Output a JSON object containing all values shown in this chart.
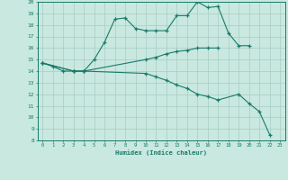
{
  "xlabel": "Humidex (Indice chaleur)",
  "bg_color": "#c8e8e0",
  "line_color": "#1a7a6a",
  "grid_color": "#a8ccc4",
  "xlim": [
    -0.5,
    23.5
  ],
  "ylim": [
    8,
    20
  ],
  "xticks": [
    0,
    1,
    2,
    3,
    4,
    5,
    6,
    7,
    8,
    9,
    10,
    11,
    12,
    13,
    14,
    15,
    16,
    17,
    18,
    19,
    20,
    21,
    22,
    23
  ],
  "yticks": [
    8,
    9,
    10,
    11,
    12,
    13,
    14,
    15,
    16,
    17,
    18,
    19,
    20
  ],
  "series1_x": [
    0,
    1,
    2,
    3,
    4,
    5,
    6,
    7,
    8,
    9,
    10,
    11,
    12,
    13,
    14,
    15,
    16,
    17,
    18,
    19,
    20
  ],
  "series1_y": [
    14.7,
    14.4,
    14.0,
    14.0,
    14.0,
    15.0,
    16.5,
    18.5,
    18.6,
    17.7,
    17.5,
    17.5,
    17.5,
    18.8,
    18.8,
    20.0,
    19.5,
    19.6,
    17.3,
    16.2,
    16.2
  ],
  "series2_x": [
    0,
    3,
    4,
    10,
    11,
    12,
    13,
    14,
    15,
    16,
    17
  ],
  "series2_y": [
    14.7,
    14.0,
    14.0,
    15.0,
    15.2,
    15.5,
    15.7,
    15.8,
    16.0,
    16.0,
    16.0
  ],
  "series3_x": [
    0,
    3,
    4,
    10,
    11,
    12,
    13,
    14,
    15,
    16,
    17,
    19,
    20,
    21,
    22
  ],
  "series3_y": [
    14.7,
    14.0,
    14.0,
    13.8,
    13.5,
    13.2,
    12.8,
    12.5,
    12.0,
    11.8,
    11.5,
    12.0,
    11.2,
    10.5,
    8.5
  ]
}
